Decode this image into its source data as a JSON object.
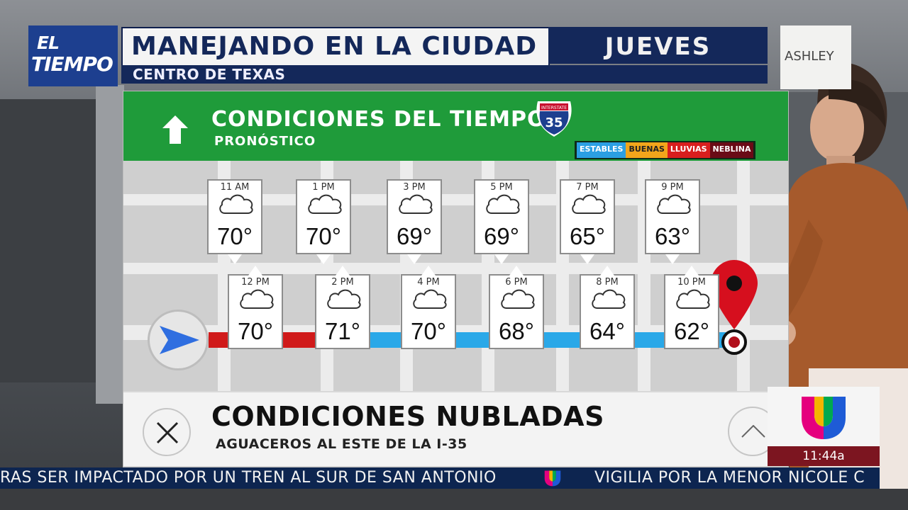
{
  "header": {
    "logo_line1": "EL",
    "logo_line2": "TIEMPO",
    "title": "MANEJANDO EN LA CIUDAD",
    "day": "JUEVES",
    "subtitle": "CENTRO DE TEXAS",
    "sponsor": "ASHLEY"
  },
  "panel": {
    "title": "CONDICIONES DEL TIEMPO",
    "subtitle": "PRONÓSTICO",
    "highway_number": "35",
    "highway_label": "INTERSTATE",
    "legend": [
      {
        "label": "ESTABLES",
        "color": "#2b9fe3"
      },
      {
        "label": "BUENAS",
        "color": "#f2a51b"
      },
      {
        "label": "LLUVIAS",
        "color": "#d81e1e"
      },
      {
        "label": "NEBLINA",
        "color": "#6a0b16"
      }
    ]
  },
  "forecast_top": [
    {
      "time": "11 AM",
      "temp": "70°",
      "icon": "cloud-icon"
    },
    {
      "time": "1 PM",
      "temp": "70°",
      "icon": "cloud-icon"
    },
    {
      "time": "3 PM",
      "temp": "69°",
      "icon": "cloud-icon"
    },
    {
      "time": "5 PM",
      "temp": "69°",
      "icon": "cloud-icon"
    },
    {
      "time": "7 PM",
      "temp": "65°",
      "icon": "cloud-icon"
    },
    {
      "time": "9 PM",
      "temp": "63°",
      "icon": "cloud-icon"
    }
  ],
  "forecast_bottom": [
    {
      "time": "12 PM",
      "temp": "70°",
      "icon": "cloud-icon"
    },
    {
      "time": "2 PM",
      "temp": "71°",
      "icon": "cloud-icon"
    },
    {
      "time": "4 PM",
      "temp": "70°",
      "icon": "cloud-icon"
    },
    {
      "time": "6 PM",
      "temp": "68°",
      "icon": "cloud-icon"
    },
    {
      "time": "8 PM",
      "temp": "64°",
      "icon": "cloud-icon"
    },
    {
      "time": "10 PM",
      "temp": "62°",
      "icon": "cloud-icon"
    }
  ],
  "route": {
    "segments": [
      {
        "condition": "LLUVIAS",
        "color": "#d01a1a"
      },
      {
        "condition": "ESTABLES",
        "color": "#2aa8e8"
      }
    ]
  },
  "info": {
    "title": "CONDICIONES NUBLADAS",
    "subtitle": "AGUACEROS AL ESTE DE LA I-35"
  },
  "clock": "11:44a",
  "ticker": {
    "item1": "RAS SER IMPACTADO POR UN TREN AL SUR DE SAN ANTONIO",
    "item2": "VIGILIA POR LA MENOR NICOLE C"
  }
}
